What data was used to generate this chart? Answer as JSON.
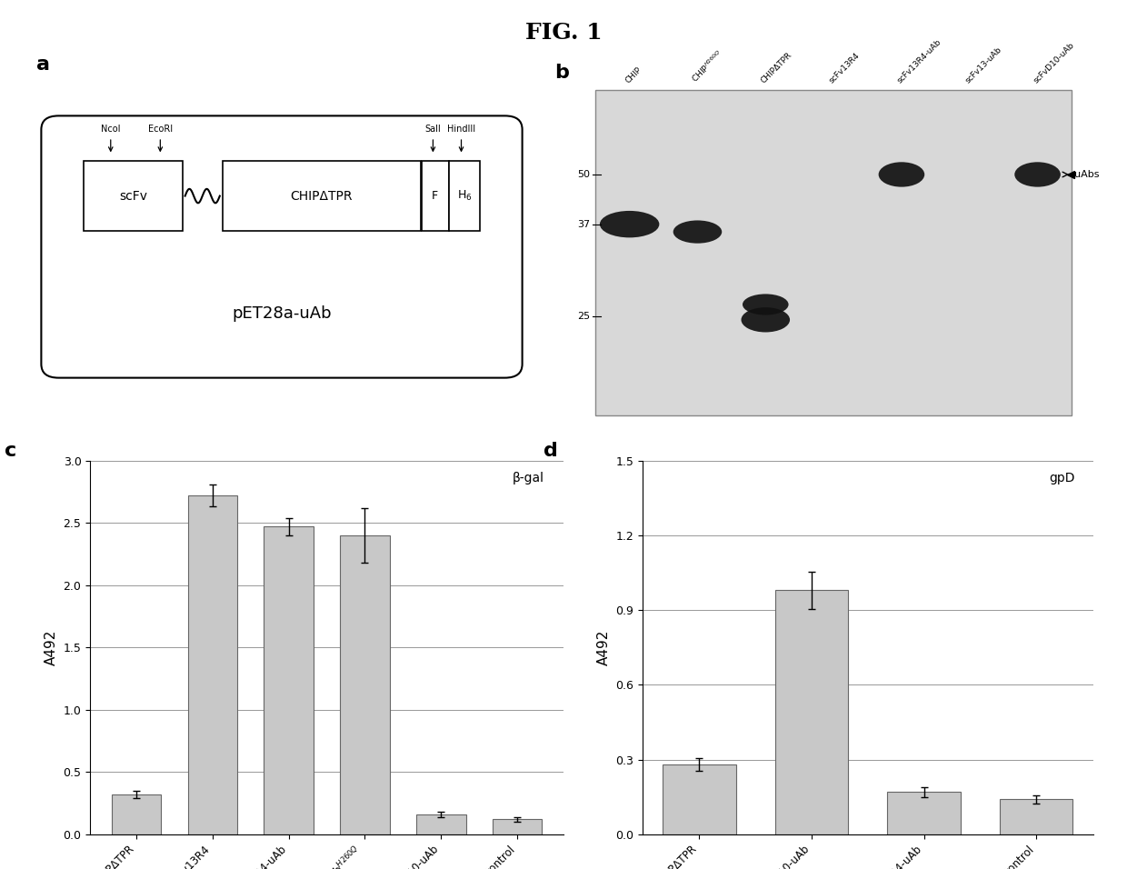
{
  "title": "FIG. 1",
  "panel_c": {
    "values": [
      0.32,
      2.72,
      2.47,
      2.4,
      0.16,
      0.12
    ],
    "errors": [
      0.03,
      0.09,
      0.07,
      0.22,
      0.02,
      0.02
    ],
    "ylabel": "A492",
    "ylim": [
      0.0,
      3.0
    ],
    "yticks": [
      0.0,
      0.5,
      1.0,
      1.5,
      2.0,
      2.5,
      3.0
    ],
    "annotation": "β-gal",
    "bar_color": "#c8c8c8",
    "bar_edgecolor": "#666666"
  },
  "panel_d": {
    "values": [
      0.28,
      0.98,
      0.17,
      0.14
    ],
    "errors": [
      0.025,
      0.075,
      0.02,
      0.015
    ],
    "ylabel": "A492",
    "ylim": [
      0.0,
      1.5
    ],
    "yticks": [
      0.0,
      0.3,
      0.6,
      0.9,
      1.2,
      1.5
    ],
    "annotation": "gpD",
    "bar_color": "#c8c8c8",
    "bar_edgecolor": "#666666"
  },
  "background_color": "#ffffff",
  "title_fontsize": 18,
  "label_fontsize": 16
}
